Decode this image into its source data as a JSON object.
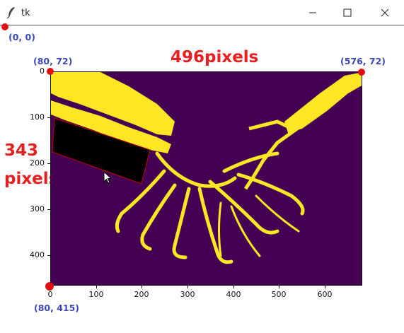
{
  "window": {
    "title": "tk"
  },
  "annotations": {
    "origin_label": "(0,  0)",
    "top_left_label": "(80,  72)",
    "top_right_label": "(576, 72)",
    "bottom_left_label": "(80, 415)",
    "width_label": "496pixels",
    "height_label_line1": "343",
    "height_label_line2": "pixels"
  },
  "colors": {
    "background": "#440154",
    "foreground": "#fde725",
    "rect_fill": "#000000",
    "rect_stroke": "#b00000",
    "dot": "#e01010",
    "annotation_red": "#e52020",
    "annotation_blue": "#3b49b5"
  },
  "axes": {
    "y_ticks": [
      "0",
      "100",
      "200",
      "300",
      "400"
    ],
    "x_ticks": [
      "0",
      "100",
      "200",
      "300",
      "400",
      "500",
      "600"
    ]
  },
  "icons": {
    "app": "feather-icon",
    "minimize": "minimize-icon",
    "maximize": "maximize-icon",
    "close": "close-icon",
    "cursor": "cursor-arrow-icon"
  }
}
